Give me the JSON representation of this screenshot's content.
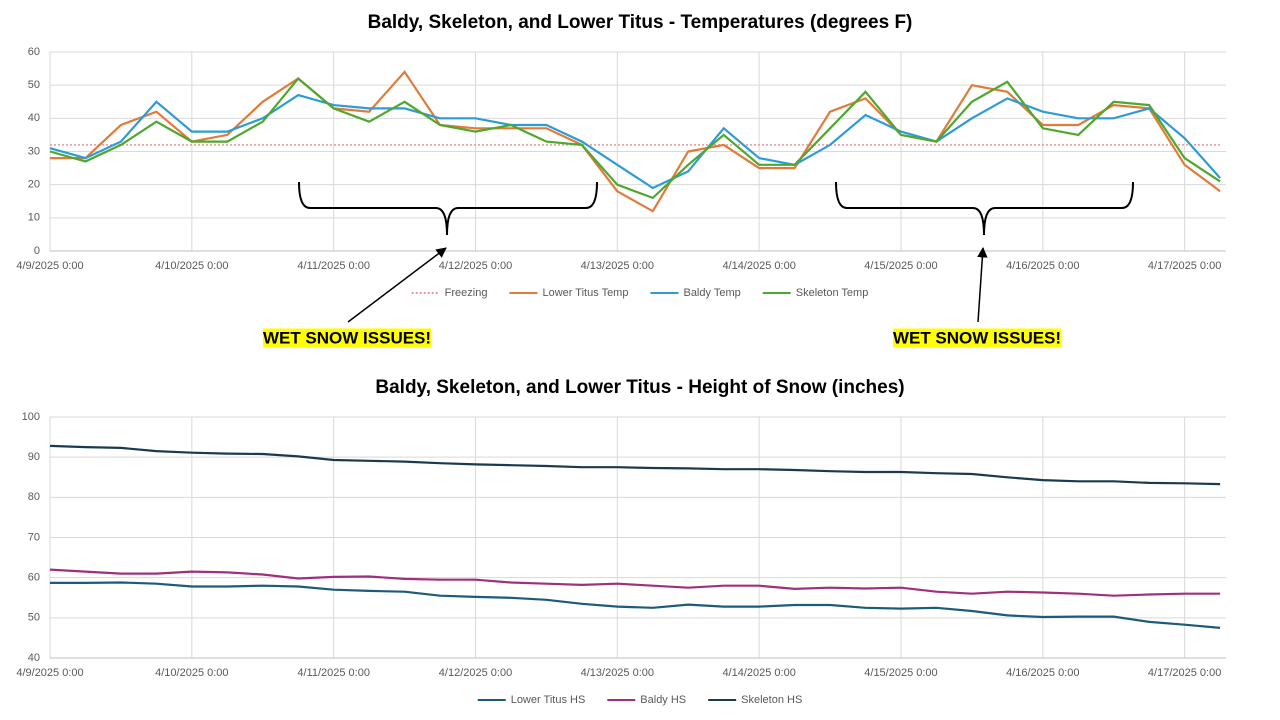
{
  "chart_data": [
    {
      "type": "line",
      "title": "Baldy, Skeleton, and Lower Titus  -  Temperatures (degrees F)",
      "x": [
        "4/9/2025 0:00",
        "4/9/2025 6:00",
        "4/9/2025 12:00",
        "4/9/2025 18:00",
        "4/10/2025 0:00",
        "4/10/2025 6:00",
        "4/10/2025 12:00",
        "4/10/2025 18:00",
        "4/11/2025 0:00",
        "4/11/2025 6:00",
        "4/11/2025 12:00",
        "4/11/2025 18:00",
        "4/12/2025 0:00",
        "4/12/2025 6:00",
        "4/12/2025 12:00",
        "4/12/2025 18:00",
        "4/13/2025 0:00",
        "4/13/2025 6:00",
        "4/13/2025 12:00",
        "4/13/2025 18:00",
        "4/14/2025 0:00",
        "4/14/2025 6:00",
        "4/14/2025 12:00",
        "4/14/2025 18:00",
        "4/15/2025 0:00",
        "4/15/2025 6:00",
        "4/15/2025 12:00",
        "4/15/2025 18:00",
        "4/16/2025 0:00",
        "4/16/2025 6:00",
        "4/16/2025 12:00",
        "4/16/2025 18:00",
        "4/17/2025 0:00",
        "4/17/2025 6:00"
      ],
      "xlim": [
        "4/9/2025 0:00",
        "4/17/2025 7:00"
      ],
      "xticks": [
        "4/9/2025 0:00",
        "4/10/2025 0:00",
        "4/11/2025 0:00",
        "4/12/2025 0:00",
        "4/13/2025 0:00",
        "4/14/2025 0:00",
        "4/15/2025 0:00",
        "4/16/2025 0:00",
        "4/17/2025 0:00"
      ],
      "ylim": [
        0,
        60
      ],
      "yticks": [
        0,
        10,
        20,
        30,
        40,
        50,
        60
      ],
      "grid": true,
      "legend": "bottom",
      "series": [
        {
          "name": "Freezing",
          "color": "#e8969b",
          "dashed": true,
          "values": [
            32,
            32,
            32,
            32,
            32,
            32,
            32,
            32,
            32,
            32,
            32,
            32,
            32,
            32,
            32,
            32,
            32,
            32,
            32,
            32,
            32,
            32,
            32,
            32,
            32,
            32,
            32,
            32,
            32,
            32,
            32,
            32,
            32,
            32
          ]
        },
        {
          "name": "Lower Titus Temp",
          "color": "#e07b39",
          "values": [
            28,
            28,
            38,
            42,
            33,
            35,
            45,
            52,
            43,
            42,
            54,
            38,
            37,
            37,
            37,
            32,
            18,
            12,
            30,
            32,
            25,
            25,
            42,
            46,
            35,
            33,
            50,
            48,
            38,
            38,
            44,
            43,
            26,
            18
          ]
        },
        {
          "name": "Baldy Temp",
          "color": "#2e9bd6",
          "values": [
            31,
            28,
            33,
            45,
            36,
            36,
            40,
            47,
            44,
            43,
            43,
            40,
            40,
            38,
            38,
            33,
            26,
            19,
            24,
            37,
            28,
            26,
            32,
            41,
            36,
            33,
            40,
            46,
            42,
            40,
            40,
            43,
            34,
            22
          ]
        },
        {
          "name": "Skeleton Temp",
          "color": "#4ea72e",
          "values": [
            30,
            27,
            32,
            39,
            33,
            33,
            39,
            52,
            43,
            39,
            45,
            38,
            36,
            38,
            33,
            32,
            20,
            16,
            26,
            35,
            26,
            26,
            37,
            48,
            35,
            33,
            45,
            51,
            37,
            35,
            45,
            44,
            28,
            21
          ]
        }
      ],
      "annotations": [
        {
          "text": "WET SNOW ISSUES!"
        },
        {
          "text": "WET SNOW ISSUES!"
        }
      ]
    },
    {
      "type": "line",
      "title": "Baldy, Skeleton, and Lower Titus  -  Height of Snow (inches)",
      "x": [
        "4/9/2025 0:00",
        "4/9/2025 6:00",
        "4/9/2025 12:00",
        "4/9/2025 18:00",
        "4/10/2025 0:00",
        "4/10/2025 6:00",
        "4/10/2025 12:00",
        "4/10/2025 18:00",
        "4/11/2025 0:00",
        "4/11/2025 6:00",
        "4/11/2025 12:00",
        "4/11/2025 18:00",
        "4/12/2025 0:00",
        "4/12/2025 6:00",
        "4/12/2025 12:00",
        "4/12/2025 18:00",
        "4/13/2025 0:00",
        "4/13/2025 6:00",
        "4/13/2025 12:00",
        "4/13/2025 18:00",
        "4/14/2025 0:00",
        "4/14/2025 6:00",
        "4/14/2025 12:00",
        "4/14/2025 18:00",
        "4/15/2025 0:00",
        "4/15/2025 6:00",
        "4/15/2025 12:00",
        "4/15/2025 18:00",
        "4/16/2025 0:00",
        "4/16/2025 6:00",
        "4/16/2025 12:00",
        "4/16/2025 18:00",
        "4/17/2025 0:00",
        "4/17/2025 6:00"
      ],
      "xlim": [
        "4/9/2025 0:00",
        "4/17/2025 7:00"
      ],
      "xticks": [
        "4/9/2025 0:00",
        "4/10/2025 0:00",
        "4/11/2025 0:00",
        "4/12/2025 0:00",
        "4/13/2025 0:00",
        "4/14/2025 0:00",
        "4/15/2025 0:00",
        "4/16/2025 0:00",
        "4/17/2025 0:00"
      ],
      "ylim": [
        40,
        100
      ],
      "yticks": [
        40,
        50,
        60,
        70,
        80,
        90,
        100
      ],
      "grid": true,
      "legend": "bottom",
      "series": [
        {
          "name": "Lower Titus HS",
          "color": "#1d5b7a",
          "values": [
            58.7,
            58.7,
            58.8,
            58.5,
            57.8,
            57.8,
            58,
            57.8,
            57,
            56.7,
            56.5,
            55.5,
            55.2,
            55,
            54.5,
            53.5,
            52.8,
            52.5,
            53.3,
            52.8,
            52.8,
            53.2,
            53.2,
            52.5,
            52.3,
            52.5,
            51.7,
            50.6,
            50.2,
            50.3,
            50.3,
            49,
            48.3,
            47.5
          ]
        },
        {
          "name": "Baldy HS",
          "color": "#a0307d",
          "values": [
            62,
            61.5,
            61,
            61,
            61.5,
            61.3,
            60.8,
            59.8,
            60.2,
            60.3,
            59.7,
            59.5,
            59.5,
            58.8,
            58.5,
            58.2,
            58.5,
            58,
            57.5,
            58,
            58,
            57.2,
            57.5,
            57.3,
            57.5,
            56.5,
            56,
            56.5,
            56.3,
            56,
            55.5,
            55.8,
            56,
            56
          ]
        },
        {
          "name": "Skeleton HS",
          "color": "#1b3a4f",
          "values": [
            92.8,
            92.5,
            92.3,
            91.5,
            91.1,
            90.9,
            90.8,
            90.2,
            89.3,
            89.1,
            88.9,
            88.5,
            88.2,
            88,
            87.8,
            87.5,
            87.5,
            87.3,
            87.2,
            87,
            87,
            86.8,
            86.5,
            86.3,
            86.3,
            86,
            85.8,
            85,
            84.3,
            84,
            84,
            83.6,
            83.5,
            83.3
          ]
        }
      ]
    }
  ]
}
